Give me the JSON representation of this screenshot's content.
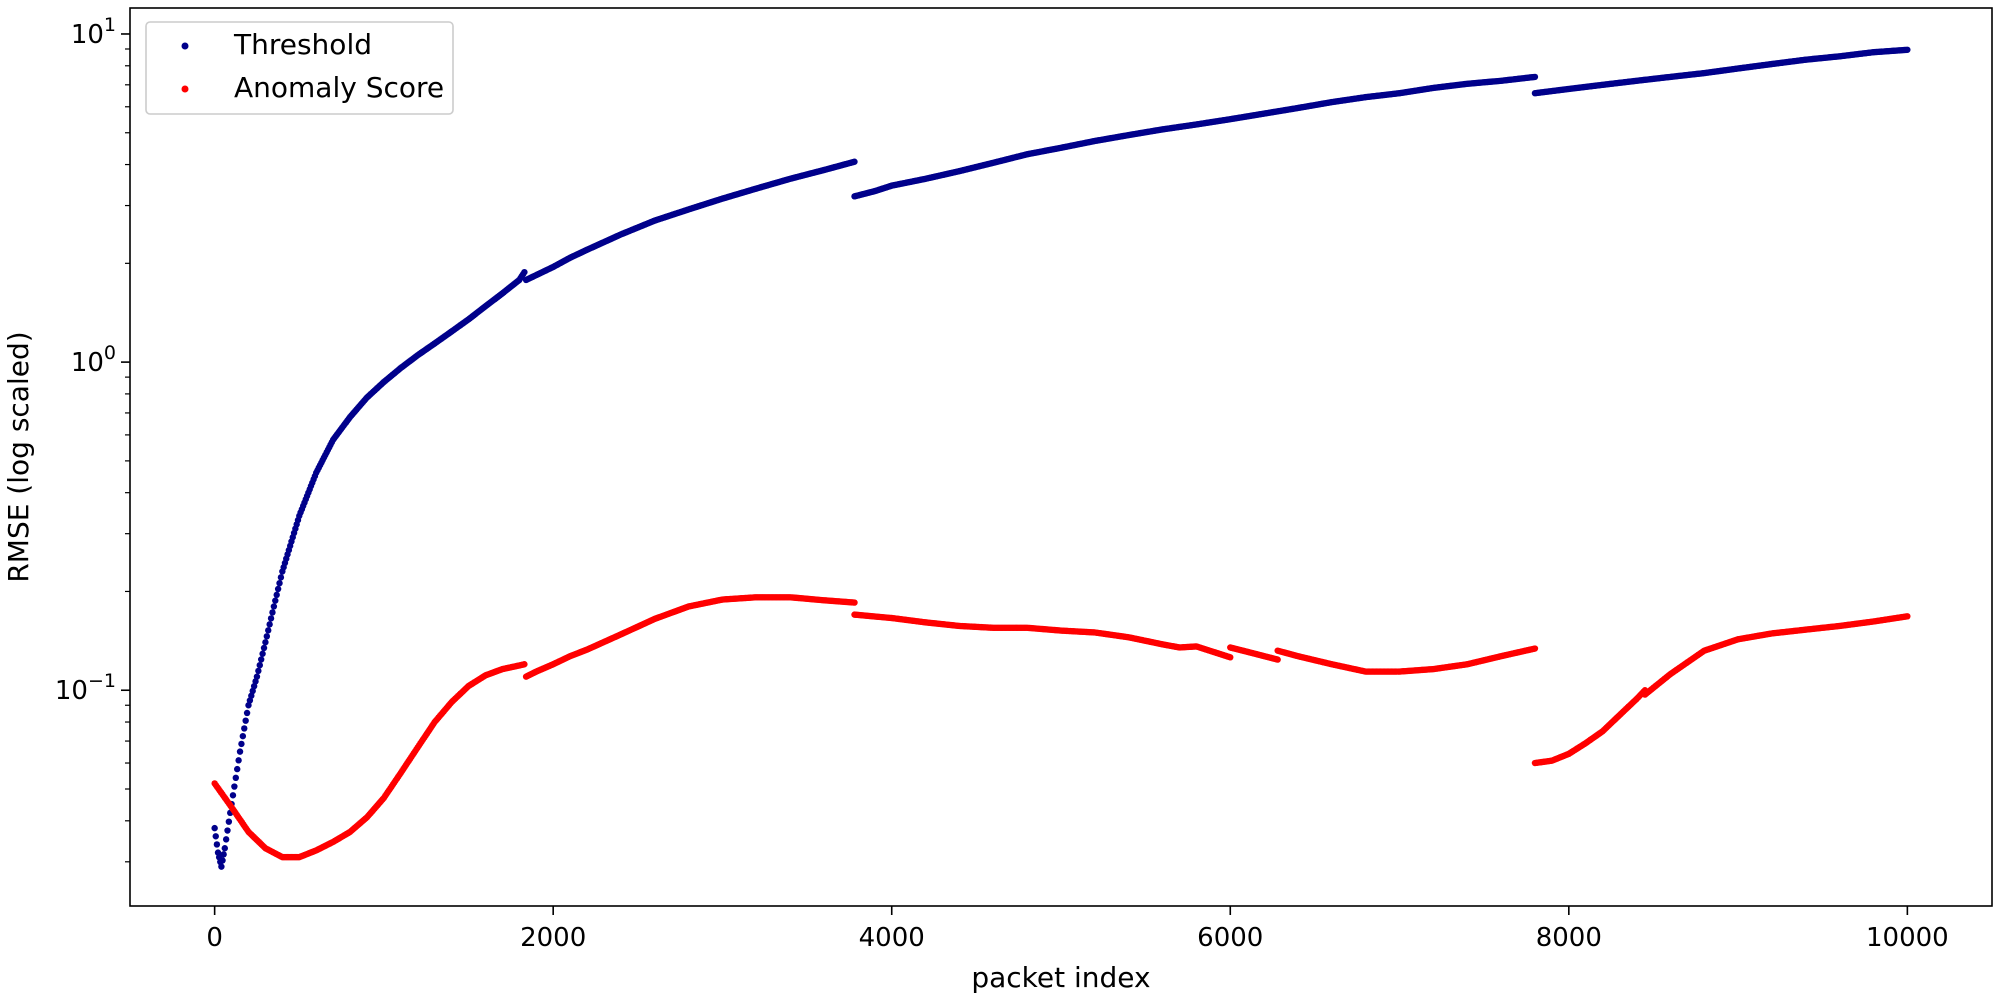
{
  "chart_data": {
    "type": "scatter",
    "title": "",
    "xlabel": "packet index",
    "ylabel": "RMSE (log scaled)",
    "xlim": [
      -500,
      10500
    ],
    "ylim": [
      0.022,
      12.0
    ],
    "y_scale": "log",
    "x_ticks": [
      0,
      2000,
      4000,
      6000,
      8000,
      10000
    ],
    "x_tick_labels": [
      "0",
      "2000",
      "4000",
      "6000",
      "8000",
      "10000"
    ],
    "y_ticks": [
      0.1,
      1,
      10
    ],
    "y_tick_labels": [
      {
        "base": "10",
        "exp": "−1"
      },
      {
        "base": "10",
        "exp": "0"
      },
      {
        "base": "10",
        "exp": "1"
      }
    ],
    "grid": false,
    "legend": "top-left",
    "series": [
      {
        "name": "Threshold",
        "color": "#00008b",
        "segments": [
          [
            [
              0,
              0.038
            ],
            [
              20,
              0.032
            ],
            [
              40,
              0.029
            ],
            [
              60,
              0.033
            ],
            [
              100,
              0.045
            ],
            [
              150,
              0.065
            ],
            [
              200,
              0.09
            ],
            [
              250,
              0.11
            ],
            [
              300,
              0.14
            ],
            [
              350,
              0.18
            ],
            [
              400,
              0.23
            ],
            [
              500,
              0.34
            ],
            [
              600,
              0.46
            ],
            [
              700,
              0.58
            ],
            [
              800,
              0.68
            ],
            [
              900,
              0.78
            ],
            [
              1000,
              0.87
            ],
            [
              1100,
              0.96
            ],
            [
              1200,
              1.05
            ],
            [
              1300,
              1.14
            ],
            [
              1400,
              1.24
            ],
            [
              1500,
              1.35
            ],
            [
              1600,
              1.48
            ],
            [
              1700,
              1.62
            ],
            [
              1800,
              1.78
            ],
            [
              1830,
              1.88
            ]
          ],
          [
            [
              1840,
              1.78
            ],
            [
              2000,
              1.95
            ],
            [
              2100,
              2.08
            ],
            [
              2200,
              2.2
            ],
            [
              2400,
              2.45
            ],
            [
              2600,
              2.7
            ],
            [
              2800,
              2.92
            ],
            [
              3000,
              3.15
            ],
            [
              3200,
              3.38
            ],
            [
              3400,
              3.62
            ],
            [
              3600,
              3.85
            ],
            [
              3780,
              4.08
            ]
          ],
          [
            [
              3780,
              3.2
            ],
            [
              3900,
              3.32
            ],
            [
              4000,
              3.45
            ],
            [
              4200,
              3.62
            ],
            [
              4400,
              3.82
            ],
            [
              4600,
              4.05
            ],
            [
              4800,
              4.3
            ],
            [
              5000,
              4.5
            ],
            [
              5200,
              4.72
            ],
            [
              5400,
              4.92
            ],
            [
              5600,
              5.12
            ],
            [
              5800,
              5.3
            ],
            [
              6000,
              5.5
            ],
            [
              6200,
              5.72
            ],
            [
              6400,
              5.95
            ],
            [
              6600,
              6.2
            ],
            [
              6800,
              6.42
            ],
            [
              7000,
              6.6
            ],
            [
              7200,
              6.85
            ],
            [
              7400,
              7.05
            ],
            [
              7600,
              7.2
            ],
            [
              7800,
              7.4
            ]
          ],
          [
            [
              7800,
              6.6
            ],
            [
              8000,
              6.8
            ],
            [
              8200,
              7.0
            ],
            [
              8400,
              7.2
            ],
            [
              8600,
              7.4
            ],
            [
              8800,
              7.6
            ],
            [
              9000,
              7.85
            ],
            [
              9200,
              8.1
            ],
            [
              9400,
              8.35
            ],
            [
              9600,
              8.55
            ],
            [
              9800,
              8.8
            ],
            [
              10000,
              8.95
            ]
          ]
        ]
      },
      {
        "name": "Anomaly Score",
        "color": "#ff0000",
        "segments": [
          [
            [
              0,
              0.052
            ],
            [
              100,
              0.044
            ],
            [
              200,
              0.037
            ],
            [
              300,
              0.033
            ],
            [
              400,
              0.031
            ],
            [
              500,
              0.031
            ],
            [
              600,
              0.0325
            ],
            [
              700,
              0.0345
            ],
            [
              800,
              0.037
            ],
            [
              900,
              0.041
            ],
            [
              1000,
              0.047
            ],
            [
              1100,
              0.056
            ],
            [
              1200,
              0.067
            ],
            [
              1300,
              0.08
            ],
            [
              1400,
              0.092
            ],
            [
              1500,
              0.103
            ],
            [
              1600,
              0.111
            ],
            [
              1700,
              0.116
            ],
            [
              1800,
              0.119
            ],
            [
              1830,
              0.12
            ]
          ],
          [
            [
              1840,
              0.11
            ],
            [
              1900,
              0.114
            ],
            [
              2000,
              0.12
            ],
            [
              2100,
              0.127
            ],
            [
              2200,
              0.133
            ],
            [
              2400,
              0.148
            ],
            [
              2600,
              0.165
            ],
            [
              2800,
              0.18
            ],
            [
              3000,
              0.189
            ],
            [
              3200,
              0.192
            ],
            [
              3400,
              0.192
            ],
            [
              3600,
              0.188
            ],
            [
              3780,
              0.185
            ]
          ],
          [
            [
              3780,
              0.17
            ],
            [
              4000,
              0.166
            ],
            [
              4200,
              0.161
            ],
            [
              4400,
              0.157
            ],
            [
              4600,
              0.155
            ],
            [
              4800,
              0.155
            ],
            [
              5000,
              0.152
            ],
            [
              5200,
              0.15
            ],
            [
              5400,
              0.145
            ],
            [
              5600,
              0.138
            ],
            [
              5700,
              0.135
            ],
            [
              5800,
              0.136
            ],
            [
              6000,
              0.126
            ]
          ],
          [
            [
              6000,
              0.135
            ],
            [
              6100,
              0.131
            ],
            [
              6280,
              0.124
            ]
          ],
          [
            [
              6280,
              0.132
            ],
            [
              6400,
              0.127
            ],
            [
              6600,
              0.12
            ],
            [
              6800,
              0.114
            ],
            [
              7000,
              0.114
            ],
            [
              7200,
              0.116
            ],
            [
              7400,
              0.12
            ],
            [
              7600,
              0.127
            ],
            [
              7800,
              0.134
            ]
          ],
          [
            [
              7800,
              0.06
            ],
            [
              7900,
              0.061
            ],
            [
              8000,
              0.064
            ],
            [
              8100,
              0.069
            ],
            [
              8200,
              0.075
            ],
            [
              8300,
              0.084
            ],
            [
              8400,
              0.094
            ],
            [
              8450,
              0.1
            ]
          ],
          [
            [
              8450,
              0.097
            ],
            [
              8600,
              0.112
            ],
            [
              8800,
              0.132
            ],
            [
              9000,
              0.143
            ],
            [
              9200,
              0.149
            ],
            [
              9400,
              0.153
            ],
            [
              9600,
              0.157
            ],
            [
              9800,
              0.162
            ],
            [
              10000,
              0.168
            ]
          ]
        ]
      }
    ]
  }
}
